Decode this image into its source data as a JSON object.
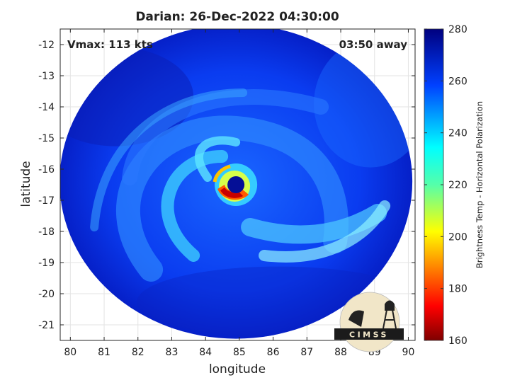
{
  "chart_data": {
    "type": "heatmap",
    "title": "Darian: 26-Dec-2022 04:30:00",
    "xlabel": "longitude",
    "ylabel": "latitude",
    "xlim": [
      79.7,
      90.2
    ],
    "ylim": [
      -21.5,
      -11.5
    ],
    "x_ticks": [
      80,
      81,
      82,
      83,
      84,
      85,
      86,
      87,
      88,
      89,
      90
    ],
    "y_ticks": [
      -12,
      -13,
      -14,
      -15,
      -16,
      -17,
      -18,
      -19,
      -20,
      -21
    ],
    "grid": true,
    "annotations": {
      "intensity": "Vmax: 113 kts",
      "time_offset": "03:50 away"
    },
    "colorbar": {
      "label": "Brightness Temp - Horizontal Polarization",
      "range": [
        160,
        280
      ],
      "ticks": [
        280,
        260,
        240,
        220,
        200,
        180,
        160
      ],
      "colormap": "jet"
    },
    "storm": {
      "eye_center": [
        84.9,
        -16.5
      ],
      "swath_center": [
        84.9,
        -16.4
      ]
    }
  },
  "logo": {
    "text": "CIMSS"
  }
}
